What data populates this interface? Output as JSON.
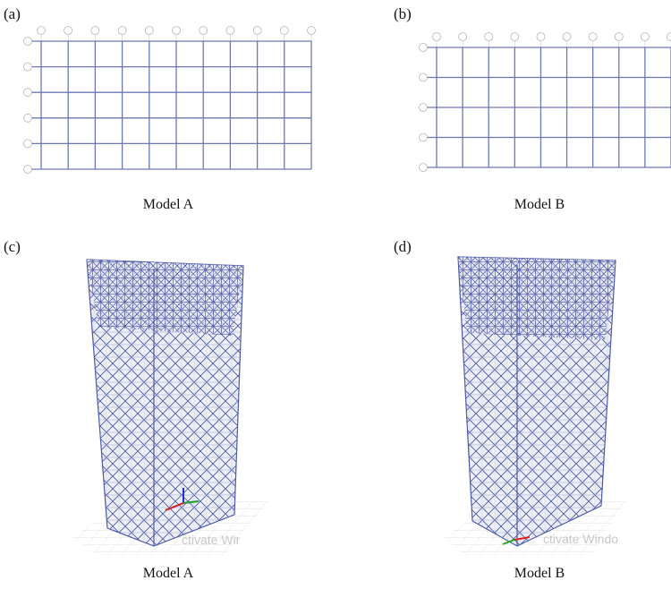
{
  "panels": [
    {
      "label": "(a)",
      "caption": "Model A"
    },
    {
      "label": "(b)",
      "caption": "Model B"
    },
    {
      "label": "(c)",
      "caption": "Model A",
      "watermark": "ctivate Wir"
    },
    {
      "label": "(d)",
      "caption": "Model B",
      "watermark": "ctivate Windo"
    }
  ]
}
